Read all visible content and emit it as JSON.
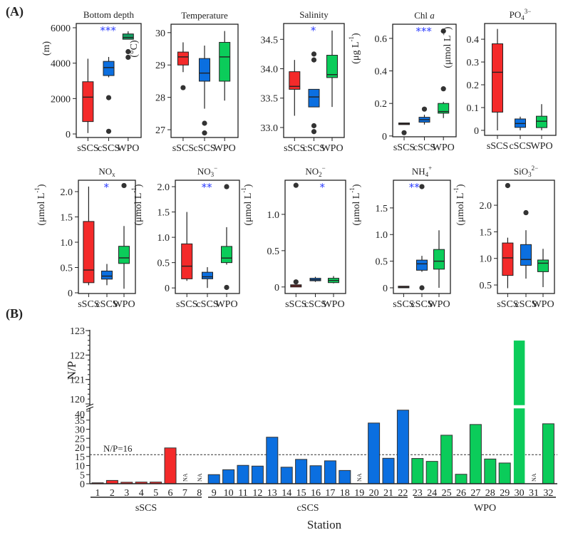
{
  "panel_labels": {
    "a": "(A)",
    "b": "(B)"
  },
  "colors": {
    "sSCS": "#f42a2a",
    "cSCS": "#0b6fe0",
    "WPO": "#0bcc5a",
    "WPO_depth": "#13a063",
    "outlier": "#333333",
    "significance": "#2b3cff"
  },
  "chart_data": {
    "type": "boxplot+bar",
    "groups": [
      "sSCS",
      "cSCS",
      "WPO"
    ],
    "panels": [
      {
        "title": {
          "base": "Bottom depth",
          "italic": "",
          "sub": "",
          "sup": ""
        },
        "unit": {
          "base": "(m)",
          "sup": "",
          "end": ""
        },
        "ylim": [
          -200,
          6240
        ],
        "yticks": [
          "0",
          "2000",
          "4000",
          "6000"
        ],
        "significance": {
          "label": "***",
          "group": 1
        },
        "boxes": [
          {
            "min": 50,
            "q1": 700,
            "med": 2080,
            "q3": 2950,
            "max": 4250,
            "outliers": []
          },
          {
            "min": 3200,
            "q1": 3300,
            "med": 3750,
            "q3": 4100,
            "max": 4350,
            "outliers": [
              2050,
              150
            ]
          },
          {
            "min": 5350,
            "q1": 5350,
            "med": 5450,
            "q3": 5650,
            "max": 5800,
            "outliers": [
              4650,
              4330
            ]
          }
        ]
      },
      {
        "title": {
          "base": "Temperature",
          "italic": "",
          "sub": "",
          "sup": ""
        },
        "unit": {
          "base": "(°C)",
          "sup": "",
          "end": ""
        },
        "ylim": [
          26.76,
          30.26
        ],
        "yticks": [
          "27",
          "28",
          "29",
          "30"
        ],
        "significance": null,
        "boxes": [
          {
            "min": 28.78,
            "q1": 29.0,
            "med": 29.25,
            "q3": 29.4,
            "max": 29.7,
            "outliers": [
              28.3
            ]
          },
          {
            "min": 27.65,
            "q1": 28.5,
            "med": 28.75,
            "q3": 29.2,
            "max": 29.6,
            "outliers": [
              27.2,
              26.9
            ]
          },
          {
            "min": 27.9,
            "q1": 28.5,
            "med": 29.25,
            "q3": 29.7,
            "max": 30.05,
            "outliers": []
          }
        ]
      },
      {
        "title": {
          "base": "Salinity",
          "italic": "",
          "sub": "",
          "sup": ""
        },
        "unit": {
          "base": "",
          "sup": "",
          "end": ""
        },
        "ylim": [
          32.83,
          34.77
        ],
        "yticks": [
          "33.0",
          "33.5",
          "34.0",
          "34.5"
        ],
        "significance": {
          "label": "*",
          "group": 1
        },
        "boxes": [
          {
            "min": 33.2,
            "q1": 33.65,
            "med": 33.7,
            "q3": 33.95,
            "max": 34.15,
            "outliers": []
          },
          {
            "min": 33.35,
            "q1": 33.35,
            "med": 33.52,
            "q3": 33.65,
            "max": 33.65,
            "outliers": [
              34.25,
              34.15,
              33.03,
              32.93
            ]
          },
          {
            "min": 33.35,
            "q1": 33.85,
            "med": 33.9,
            "q3": 34.23,
            "max": 34.65,
            "outliers": []
          }
        ]
      },
      {
        "title": {
          "base": "Chl ",
          "italic": "a",
          "sub": "",
          "sup": ""
        },
        "unit": {
          "base": "(μg L",
          "sup": "-1",
          "end": ")"
        },
        "ylim": [
          -0.005,
          0.687
        ],
        "yticks": [
          "0",
          "0.2",
          "0.4",
          "0.6"
        ],
        "significance": {
          "label": "***",
          "group": 1
        },
        "boxes": [
          {
            "min": 0.07,
            "q1": 0.07,
            "med": 0.075,
            "q3": 0.08,
            "max": 0.08,
            "outliers": [
              0.02
            ]
          },
          {
            "min": 0.07,
            "q1": 0.085,
            "med": 0.1,
            "q3": 0.115,
            "max": 0.13,
            "outliers": [
              0.165
            ]
          },
          {
            "min": 0.11,
            "q1": 0.14,
            "med": 0.15,
            "q3": 0.2,
            "max": 0.21,
            "outliers": [
              0.29,
              0.645
            ]
          }
        ]
      },
      {
        "title": {
          "base": "PO",
          "italic": "",
          "sub": "4",
          "sup": "3−"
        },
        "unit": {
          "base": "(μmol L",
          "sup": "-1",
          "end": ")"
        },
        "ylim": [
          -0.022,
          0.469
        ],
        "yticks": [
          "0",
          "0.1",
          "0.2",
          "0.3",
          "0.4"
        ],
        "significance": null,
        "boxes": [
          {
            "min": 0,
            "q1": 0.08,
            "med": 0.255,
            "q3": 0.38,
            "max": 0.445,
            "outliers": []
          },
          {
            "min": 0,
            "q1": 0.013,
            "med": 0.03,
            "q3": 0.05,
            "max": 0.06,
            "outliers": []
          },
          {
            "min": 0,
            "q1": 0.012,
            "med": 0.04,
            "q3": 0.062,
            "max": 0.115,
            "outliers": []
          }
        ]
      },
      {
        "title": {
          "base": "NO",
          "italic": "",
          "sub": "x",
          "sup": ""
        },
        "unit": {
          "base": "(μmol L",
          "sup": "-1",
          "end": ")"
        },
        "ylim": [
          -0.014,
          2.225
        ],
        "yticks": [
          "0",
          "0.5",
          "1.0",
          "1.5",
          "2.0"
        ],
        "significance": {
          "label": "*",
          "group": 1
        },
        "boxes": [
          {
            "min": 0.15,
            "q1": 0.2,
            "med": 0.45,
            "q3": 1.41,
            "max": 2.1,
            "outliers": []
          },
          {
            "min": 0.15,
            "q1": 0.27,
            "med": 0.33,
            "q3": 0.43,
            "max": 0.57,
            "outliers": []
          },
          {
            "min": 0.08,
            "q1": 0.58,
            "med": 0.69,
            "q3": 0.92,
            "max": 1.32,
            "outliers": [
              2.12
            ]
          }
        ]
      },
      {
        "title": {
          "base": "NO",
          "italic": "",
          "sub": "3",
          "sup": "−"
        },
        "unit": {
          "base": "(μmol L",
          "sup": "-1",
          "end": ")"
        },
        "ylim": [
          -0.11,
          2.127
        ],
        "yticks": [
          "0",
          "0.5",
          "1.0",
          "1.5",
          "2.0"
        ],
        "significance": {
          "label": "**",
          "group": 1
        },
        "boxes": [
          {
            "min": 0.14,
            "q1": 0.18,
            "med": 0.43,
            "q3": 0.87,
            "max": 1.5,
            "outliers": []
          },
          {
            "min": 0,
            "q1": 0.18,
            "med": 0.22,
            "q3": 0.31,
            "max": 0.41,
            "outliers": []
          },
          {
            "min": 0.46,
            "q1": 0.5,
            "med": 0.59,
            "q3": 0.82,
            "max": 1.2,
            "outliers": [
              2.0,
              0.01
            ]
          }
        ]
      },
      {
        "title": {
          "base": "NO",
          "italic": "",
          "sub": "2",
          "sup": "−"
        },
        "unit": {
          "base": "(μmol L",
          "sup": "-1",
          "end": ")"
        },
        "ylim": [
          -0.09,
          1.47
        ],
        "yticks": [
          "0",
          "0.5",
          "1.0"
        ],
        "significance": {
          "label": "*",
          "group": 1.4
        },
        "boxes": [
          {
            "min": 0,
            "q1": 0,
            "med": 0.015,
            "q3": 0.03,
            "max": 0.03,
            "outliers": [
              0.07,
              1.4
            ]
          },
          {
            "min": 0.07,
            "q1": 0.085,
            "med": 0.1,
            "q3": 0.12,
            "max": 0.14,
            "outliers": []
          },
          {
            "min": 0.05,
            "q1": 0.06,
            "med": 0.09,
            "q3": 0.12,
            "max": 0.15,
            "outliers": []
          }
        ]
      },
      {
        "title": {
          "base": "NH",
          "italic": "",
          "sub": "4",
          "sup": "+"
        },
        "unit": {
          "base": "(μmol L",
          "sup": "-1",
          "end": ")"
        },
        "ylim": [
          -0.107,
          2.02
        ],
        "yticks": [
          "0",
          "0.5",
          "1.0",
          "1.5"
        ],
        "significance": {
          "label": "**",
          "group": 0.6
        },
        "boxes": [
          {
            "min": 0,
            "q1": 0,
            "med": 0.015,
            "q3": 0.03,
            "max": 0.03,
            "outliers": []
          },
          {
            "min": 0.3,
            "q1": 0.33,
            "med": 0.45,
            "q3": 0.52,
            "max": 0.6,
            "outliers": [
              1.9,
              0
            ]
          },
          {
            "min": 0,
            "q1": 0.35,
            "med": 0.5,
            "q3": 0.72,
            "max": 1.08,
            "outliers": []
          }
        ]
      },
      {
        "title": {
          "base": "SiO",
          "italic": "",
          "sub": "3",
          "sup": "2−"
        },
        "unit": {
          "base": "(μmol L",
          "sup": "-1",
          "end": ")"
        },
        "ylim": [
          0.34,
          2.47
        ],
        "yticks": [
          "0.5",
          "1.0",
          "1.5",
          "2.0"
        ],
        "significance": null,
        "boxes": [
          {
            "min": 0.44,
            "q1": 0.68,
            "med": 1.01,
            "q3": 1.29,
            "max": 1.39,
            "outliers": [
              2.37
            ]
          },
          {
            "min": 0.62,
            "q1": 0.87,
            "med": 0.98,
            "q3": 1.26,
            "max": 1.53,
            "outliers": [
              1.86
            ]
          },
          {
            "min": 0.46,
            "q1": 0.75,
            "med": 0.91,
            "q3": 0.97,
            "max": 1.18,
            "outliers": []
          }
        ]
      }
    ],
    "bar": {
      "type": "bar",
      "ylabel": "N/P",
      "xlabel": "Station",
      "reference_line": {
        "value": 16,
        "label": "N/P=16"
      },
      "yticks_lower": [
        "0",
        "5",
        "10",
        "15",
        "20",
        "25",
        "30",
        "35",
        "40"
      ],
      "yticks_upper": [
        "120",
        "121",
        "122",
        "123"
      ],
      "axis_break": [
        41.5,
        119.9
      ],
      "na_label": "NA",
      "stations": [
        "1",
        "2",
        "3",
        "4",
        "5",
        "6",
        "7",
        "8",
        "9",
        "10",
        "11",
        "12",
        "13",
        "14",
        "15",
        "16",
        "17",
        "18",
        "19",
        "20",
        "21",
        "22",
        "23",
        "24",
        "25",
        "26",
        "27",
        "28",
        "29",
        "30",
        "31",
        "32"
      ],
      "values": [
        0.5,
        1.8,
        0.8,
        0.9,
        0.9,
        19.7,
        null,
        null,
        5.0,
        7.7,
        10.1,
        9.7,
        25.6,
        9.1,
        13.4,
        9.9,
        12.6,
        7.3,
        null,
        33.4,
        14.0,
        40.5,
        13.9,
        12.3,
        26.7,
        5.2,
        32.6,
        13.6,
        11.4,
        122.6,
        null,
        33.0
      ],
      "station_groups": [
        0,
        0,
        0,
        0,
        0,
        0,
        0,
        0,
        1,
        1,
        1,
        1,
        1,
        1,
        1,
        1,
        1,
        1,
        1,
        1,
        1,
        1,
        2,
        2,
        2,
        2,
        2,
        2,
        2,
        2,
        2,
        2
      ]
    }
  }
}
